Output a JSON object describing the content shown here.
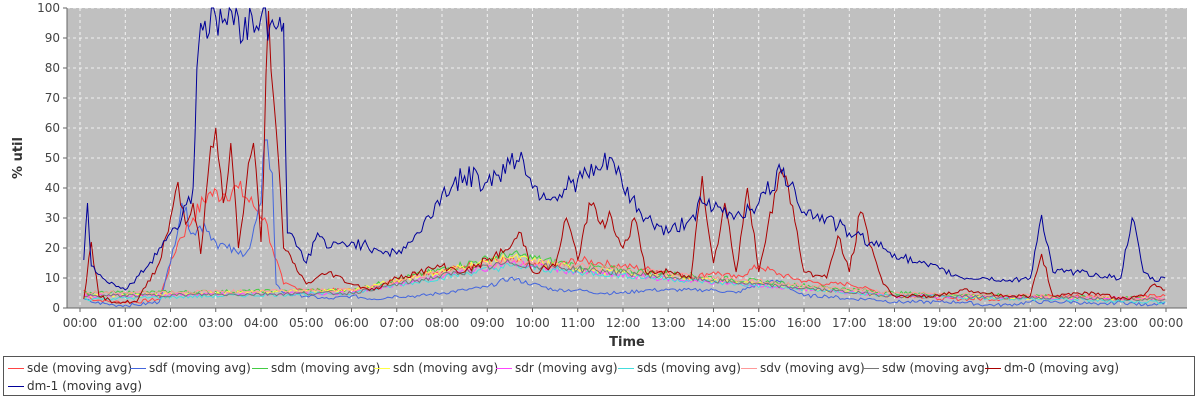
{
  "chart_data": {
    "type": "line",
    "xlabel": "Time",
    "ylabel": "% util",
    "ylim": [
      0,
      100
    ],
    "xlim": [
      "00:00",
      "00:00"
    ],
    "yticks": [
      0,
      10,
      20,
      30,
      40,
      50,
      60,
      70,
      80,
      90,
      100
    ],
    "xticks": [
      "00:00",
      "01:00",
      "02:00",
      "03:00",
      "04:00",
      "05:00",
      "06:00",
      "07:00",
      "08:00",
      "09:00",
      "10:00",
      "11:00",
      "12:00",
      "13:00",
      "14:00",
      "15:00",
      "16:00",
      "17:00",
      "18:00",
      "19:00",
      "20:00",
      "21:00",
      "22:00",
      "23:00",
      "00:00"
    ],
    "grid": true,
    "legend_position": "bottom",
    "plot_background": "#c0c0c0",
    "series": [
      {
        "name": "sde (moving avg)",
        "color": "#ff4444",
        "points": [
          [
            "00:05",
            6
          ],
          [
            "00:15",
            3
          ],
          [
            "00:45",
            2
          ],
          [
            "01:15",
            2
          ],
          [
            "01:45",
            3
          ],
          [
            "02:10",
            22
          ],
          [
            "02:30",
            30
          ],
          [
            "02:50",
            38
          ],
          [
            "03:10",
            38
          ],
          [
            "03:30",
            40
          ],
          [
            "03:50",
            34
          ],
          [
            "04:05",
            30
          ],
          [
            "04:15",
            20
          ],
          [
            "04:30",
            8
          ],
          [
            "05:00",
            6
          ],
          [
            "05:30",
            6
          ],
          [
            "06:00",
            6
          ],
          [
            "06:30",
            7
          ],
          [
            "07:00",
            9
          ],
          [
            "07:30",
            12
          ],
          [
            "08:00",
            12
          ],
          [
            "08:30",
            14
          ],
          [
            "09:00",
            16
          ],
          [
            "09:30",
            16
          ],
          [
            "10:00",
            14
          ],
          [
            "10:30",
            14
          ],
          [
            "11:00",
            16
          ],
          [
            "11:30",
            15
          ],
          [
            "12:00",
            14
          ],
          [
            "12:30",
            13
          ],
          [
            "13:00",
            12
          ],
          [
            "13:30",
            10
          ],
          [
            "14:00",
            12
          ],
          [
            "14:30",
            10
          ],
          [
            "15:00",
            14
          ],
          [
            "15:30",
            11
          ],
          [
            "16:00",
            9
          ],
          [
            "16:30",
            8
          ],
          [
            "17:00",
            8
          ],
          [
            "17:30",
            6
          ],
          [
            "18:00",
            4
          ],
          [
            "18:30",
            4
          ],
          [
            "19:00",
            3
          ],
          [
            "19:30",
            3
          ],
          [
            "20:00",
            3
          ],
          [
            "20:30",
            3
          ],
          [
            "21:00",
            4
          ],
          [
            "21:30",
            4
          ],
          [
            "22:00",
            4
          ],
          [
            "22:30",
            4
          ],
          [
            "23:00",
            3
          ],
          [
            "23:30",
            4
          ],
          [
            "23:59",
            4
          ]
        ]
      },
      {
        "name": "sdf (moving avg)",
        "color": "#4466dd",
        "points": [
          [
            "00:05",
            3
          ],
          [
            "00:15",
            2
          ],
          [
            "00:45",
            1
          ],
          [
            "01:15",
            1
          ],
          [
            "01:45",
            2
          ],
          [
            "02:00",
            15
          ],
          [
            "02:15",
            35
          ],
          [
            "02:30",
            25
          ],
          [
            "02:45",
            28
          ],
          [
            "03:00",
            22
          ],
          [
            "03:15",
            20
          ],
          [
            "03:30",
            18
          ],
          [
            "03:45",
            20
          ],
          [
            "04:00",
            35
          ],
          [
            "04:05",
            56
          ],
          [
            "04:15",
            45
          ],
          [
            "04:20",
            8
          ],
          [
            "04:30",
            5
          ],
          [
            "05:00",
            4
          ],
          [
            "05:30",
            3
          ],
          [
            "06:00",
            4
          ],
          [
            "06:30",
            3
          ],
          [
            "07:00",
            4
          ],
          [
            "07:30",
            4
          ],
          [
            "08:00",
            5
          ],
          [
            "08:30",
            6
          ],
          [
            "09:00",
            7
          ],
          [
            "09:30",
            10
          ],
          [
            "10:00",
            8
          ],
          [
            "10:30",
            6
          ],
          [
            "11:00",
            6
          ],
          [
            "11:30",
            5
          ],
          [
            "12:00",
            5
          ],
          [
            "12:30",
            6
          ],
          [
            "13:00",
            6
          ],
          [
            "13:30",
            6
          ],
          [
            "14:00",
            6
          ],
          [
            "14:30",
            5
          ],
          [
            "15:00",
            8
          ],
          [
            "15:30",
            9
          ],
          [
            "15:45",
            6
          ],
          [
            "16:00",
            4
          ],
          [
            "16:30",
            4
          ],
          [
            "17:00",
            3
          ],
          [
            "17:30",
            3
          ],
          [
            "18:00",
            2
          ],
          [
            "18:30",
            2
          ],
          [
            "19:00",
            2
          ],
          [
            "19:30",
            2
          ],
          [
            "20:00",
            1
          ],
          [
            "20:30",
            1
          ],
          [
            "21:00",
            2
          ],
          [
            "21:30",
            2
          ],
          [
            "22:00",
            2
          ],
          [
            "22:30",
            1
          ],
          [
            "23:00",
            2
          ],
          [
            "23:30",
            1
          ],
          [
            "23:59",
            2
          ]
        ]
      },
      {
        "name": "sdm (moving avg)",
        "color": "#44cc44",
        "points": [
          [
            "00:05",
            5
          ],
          [
            "06:00",
            6
          ],
          [
            "09:30",
            18
          ],
          [
            "11:00",
            14
          ],
          [
            "18:00",
            5
          ],
          [
            "23:59",
            3
          ]
        ]
      },
      {
        "name": "sdn (moving avg)",
        "color": "#ffff44",
        "points": [
          [
            "00:05",
            4
          ],
          [
            "06:00",
            6
          ],
          [
            "09:30",
            17
          ],
          [
            "11:00",
            13
          ],
          [
            "18:00",
            4
          ],
          [
            "23:59",
            3
          ]
        ]
      },
      {
        "name": "sdr (moving avg)",
        "color": "#ff44ff",
        "points": [
          [
            "00:05",
            4
          ],
          [
            "06:00",
            5
          ],
          [
            "09:30",
            15
          ],
          [
            "11:00",
            12
          ],
          [
            "18:00",
            4
          ],
          [
            "23:59",
            3
          ]
        ]
      },
      {
        "name": "sds (moving avg)",
        "color": "#44dddd",
        "points": [
          [
            "00:05",
            3
          ],
          [
            "06:00",
            5
          ],
          [
            "09:30",
            14
          ],
          [
            "11:00",
            12
          ],
          [
            "18:00",
            4
          ],
          [
            "23:59",
            2
          ]
        ]
      },
      {
        "name": "sdv (moving avg)",
        "color": "#ff9999",
        "points": [
          [
            "00:05",
            5
          ],
          [
            "06:00",
            6
          ],
          [
            "09:30",
            16
          ],
          [
            "11:00",
            14
          ],
          [
            "18:00",
            5
          ],
          [
            "23:59",
            3
          ]
        ]
      },
      {
        "name": "sdw (moving avg)",
        "color": "#777777",
        "points": [
          [
            "00:05",
            4
          ],
          [
            "06:00",
            5
          ],
          [
            "09:30",
            15
          ],
          [
            "11:00",
            13
          ],
          [
            "18:00",
            4
          ],
          [
            "23:59",
            3
          ]
        ]
      },
      {
        "name": "dm-0 (moving avg)",
        "color": "#aa0000",
        "points": [
          [
            "00:05",
            3
          ],
          [
            "00:15",
            22
          ],
          [
            "00:25",
            4
          ],
          [
            "00:45",
            2
          ],
          [
            "01:15",
            2
          ],
          [
            "01:45",
            15
          ],
          [
            "02:00",
            30
          ],
          [
            "02:10",
            42
          ],
          [
            "02:20",
            28
          ],
          [
            "02:30",
            35
          ],
          [
            "02:40",
            18
          ],
          [
            "02:50",
            45
          ],
          [
            "03:00",
            60
          ],
          [
            "03:10",
            35
          ],
          [
            "03:20",
            55
          ],
          [
            "03:30",
            20
          ],
          [
            "03:40",
            40
          ],
          [
            "03:50",
            55
          ],
          [
            "04:00",
            22
          ],
          [
            "04:10",
            99
          ],
          [
            "04:20",
            60
          ],
          [
            "04:30",
            20
          ],
          [
            "05:00",
            8
          ],
          [
            "05:30",
            12
          ],
          [
            "06:00",
            8
          ],
          [
            "06:30",
            6
          ],
          [
            "07:00",
            10
          ],
          [
            "07:30",
            12
          ],
          [
            "08:00",
            14
          ],
          [
            "08:30",
            12
          ],
          [
            "09:00",
            16
          ],
          [
            "09:30",
            20
          ],
          [
            "09:45",
            25
          ],
          [
            "10:00",
            12
          ],
          [
            "10:30",
            14
          ],
          [
            "10:45",
            30
          ],
          [
            "11:00",
            16
          ],
          [
            "11:15",
            35
          ],
          [
            "11:30",
            28
          ],
          [
            "11:45",
            30
          ],
          [
            "12:00",
            20
          ],
          [
            "12:15",
            30
          ],
          [
            "12:30",
            12
          ],
          [
            "13:00",
            12
          ],
          [
            "13:30",
            10
          ],
          [
            "13:45",
            44
          ],
          [
            "14:00",
            15
          ],
          [
            "14:15",
            35
          ],
          [
            "14:30",
            12
          ],
          [
            "14:45",
            40
          ],
          [
            "15:00",
            12
          ],
          [
            "15:15",
            32
          ],
          [
            "15:30",
            46
          ],
          [
            "15:45",
            34
          ],
          [
            "16:00",
            12
          ],
          [
            "16:30",
            10
          ],
          [
            "16:45",
            24
          ],
          [
            "17:00",
            12
          ],
          [
            "17:15",
            32
          ],
          [
            "17:30",
            20
          ],
          [
            "17:45",
            8
          ],
          [
            "18:00",
            4
          ],
          [
            "18:30",
            4
          ],
          [
            "19:00",
            4
          ],
          [
            "19:30",
            6
          ],
          [
            "20:00",
            5
          ],
          [
            "20:30",
            4
          ],
          [
            "21:00",
            4
          ],
          [
            "21:15",
            18
          ],
          [
            "21:30",
            4
          ],
          [
            "22:00",
            5
          ],
          [
            "22:30",
            5
          ],
          [
            "23:00",
            3
          ],
          [
            "23:30",
            4
          ],
          [
            "23:45",
            8
          ],
          [
            "23:59",
            6
          ]
        ]
      },
      {
        "name": "dm-1 (moving avg)",
        "color": "#000099",
        "points": [
          [
            "00:05",
            16
          ],
          [
            "00:10",
            35
          ],
          [
            "00:15",
            14
          ],
          [
            "00:30",
            10
          ],
          [
            "00:45",
            8
          ],
          [
            "01:00",
            6
          ],
          [
            "01:30",
            14
          ],
          [
            "01:45",
            20
          ],
          [
            "02:00",
            25
          ],
          [
            "02:15",
            30
          ],
          [
            "02:30",
            40
          ],
          [
            "02:35",
            80
          ],
          [
            "02:40",
            95
          ],
          [
            "03:00",
            97
          ],
          [
            "03:30",
            97
          ],
          [
            "04:00",
            97
          ],
          [
            "04:15",
            96
          ],
          [
            "04:20",
            93
          ],
          [
            "04:25",
            97
          ],
          [
            "04:30",
            95
          ],
          [
            "04:35",
            25
          ],
          [
            "04:50",
            20
          ],
          [
            "05:00",
            15
          ],
          [
            "05:15",
            25
          ],
          [
            "05:30",
            20
          ],
          [
            "06:00",
            22
          ],
          [
            "06:30",
            20
          ],
          [
            "07:00",
            18
          ],
          [
            "07:30",
            25
          ],
          [
            "08:00",
            38
          ],
          [
            "08:30",
            44
          ],
          [
            "09:00",
            42
          ],
          [
            "09:30",
            48
          ],
          [
            "09:45",
            52
          ],
          [
            "10:00",
            40
          ],
          [
            "10:30",
            37
          ],
          [
            "11:00",
            43
          ],
          [
            "11:30",
            46
          ],
          [
            "11:45",
            50
          ],
          [
            "12:00",
            40
          ],
          [
            "12:30",
            30
          ],
          [
            "13:00",
            25
          ],
          [
            "13:30",
            30
          ],
          [
            "13:45",
            35
          ],
          [
            "14:00",
            33
          ],
          [
            "14:30",
            31
          ],
          [
            "15:00",
            35
          ],
          [
            "15:30",
            45
          ],
          [
            "15:45",
            42
          ],
          [
            "16:00",
            32
          ],
          [
            "16:30",
            30
          ],
          [
            "17:00",
            25
          ],
          [
            "17:30",
            22
          ],
          [
            "18:00",
            18
          ],
          [
            "18:30",
            15
          ],
          [
            "19:00",
            13
          ],
          [
            "19:30",
            10
          ],
          [
            "20:00",
            10
          ],
          [
            "20:30",
            9
          ],
          [
            "21:00",
            10
          ],
          [
            "21:15",
            31
          ],
          [
            "21:30",
            12
          ],
          [
            "22:00",
            12
          ],
          [
            "22:30",
            11
          ],
          [
            "23:00",
            10
          ],
          [
            "23:15",
            30
          ],
          [
            "23:30",
            12
          ],
          [
            "23:45",
            9
          ],
          [
            "23:59",
            10
          ]
        ]
      }
    ]
  }
}
